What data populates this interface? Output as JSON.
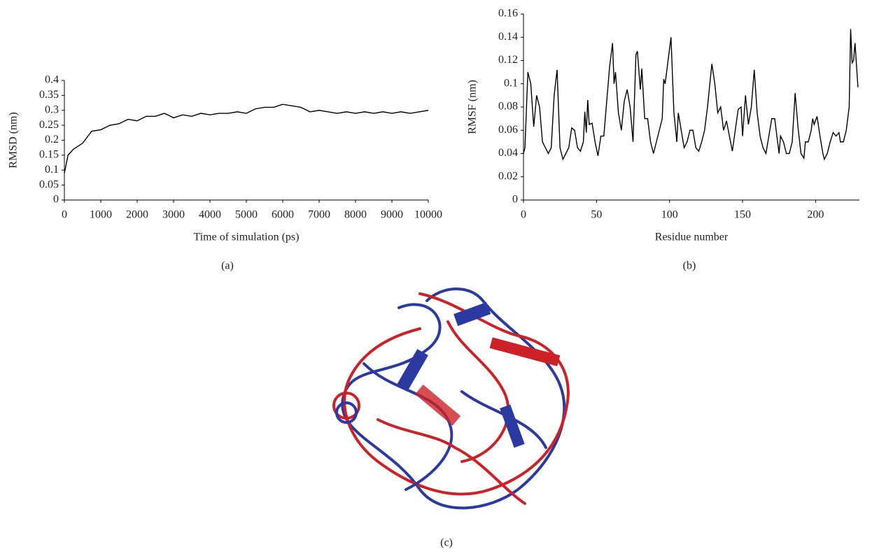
{
  "chart_data": [
    {
      "type": "line",
      "caption": "(a)",
      "x_label": "Time of simulation (ps)",
      "y_label": "RMSD (nm)",
      "xlim": [
        0,
        10000
      ],
      "xticks": [
        0,
        1000,
        2000,
        3000,
        4000,
        5000,
        6000,
        7000,
        8000,
        9000,
        10000
      ],
      "ylim": [
        0,
        0.4
      ],
      "yticks": [
        0,
        0.05,
        0.1,
        0.15,
        0.2,
        0.25,
        0.3,
        0.35,
        0.4
      ],
      "series": [
        {
          "color": "#000000",
          "x": [
            0,
            100,
            250,
            500,
            750,
            1000,
            1250,
            1500,
            1750,
            2000,
            2250,
            2500,
            2750,
            3000,
            3250,
            3500,
            3750,
            4000,
            4250,
            4500,
            4750,
            5000,
            5250,
            5500,
            5750,
            6000,
            6250,
            6500,
            6750,
            7000,
            7250,
            7500,
            7750,
            8000,
            8250,
            8500,
            8750,
            9000,
            9250,
            9500,
            9750,
            10000
          ],
          "values": [
            0.09,
            0.15,
            0.17,
            0.19,
            0.23,
            0.235,
            0.25,
            0.255,
            0.27,
            0.265,
            0.28,
            0.28,
            0.29,
            0.275,
            0.285,
            0.28,
            0.29,
            0.285,
            0.29,
            0.29,
            0.295,
            0.29,
            0.305,
            0.31,
            0.31,
            0.32,
            0.315,
            0.31,
            0.295,
            0.3,
            0.295,
            0.29,
            0.295,
            0.29,
            0.295,
            0.29,
            0.295,
            0.29,
            0.295,
            0.29,
            0.295,
            0.3
          ]
        }
      ]
    },
    {
      "type": "line",
      "caption": "(b)",
      "x_label": "Residue number",
      "y_label": "RMSF (nm)",
      "xlim": [
        0,
        230
      ],
      "xticks": [
        0,
        50,
        100,
        150,
        200
      ],
      "ylim": [
        0,
        0.16
      ],
      "yticks": [
        0,
        0.02,
        0.04,
        0.06,
        0.08,
        0.1,
        0.12,
        0.14,
        0.16
      ],
      "series": [
        {
          "color": "#000000",
          "x": [
            0,
            1,
            3,
            5,
            7,
            9,
            11,
            13,
            15,
            17,
            19,
            21,
            23,
            25,
            27,
            29,
            31,
            33,
            35,
            37,
            39,
            41,
            42,
            43,
            44,
            45,
            47,
            49,
            51,
            53,
            55,
            57,
            59,
            61,
            62,
            63,
            65,
            67,
            69,
            71,
            73,
            75,
            77,
            78,
            80,
            81,
            83,
            85,
            87,
            89,
            91,
            93,
            95,
            96,
            97,
            99,
            101,
            103,
            105,
            106,
            108,
            110,
            112,
            114,
            116,
            118,
            120,
            122,
            124,
            126,
            128,
            129,
            131,
            133,
            135,
            137,
            139,
            141,
            143,
            145,
            147,
            149,
            150,
            152,
            154,
            156,
            158,
            160,
            162,
            164,
            166,
            168,
            170,
            172,
            174,
            175,
            176,
            178,
            180,
            182,
            184,
            186,
            188,
            190,
            192,
            193,
            195,
            197,
            198,
            199,
            201,
            203,
            205,
            206,
            208,
            210,
            212,
            214,
            216,
            217,
            219,
            221,
            223,
            224,
            225,
            226,
            227,
            229
          ],
          "values": [
            0.04,
            0.045,
            0.11,
            0.1,
            0.063,
            0.09,
            0.08,
            0.05,
            0.045,
            0.04,
            0.045,
            0.09,
            0.112,
            0.045,
            0.035,
            0.04,
            0.045,
            0.062,
            0.06,
            0.045,
            0.042,
            0.05,
            0.076,
            0.058,
            0.086,
            0.065,
            0.066,
            0.05,
            0.038,
            0.055,
            0.055,
            0.085,
            0.115,
            0.135,
            0.1,
            0.11,
            0.075,
            0.06,
            0.085,
            0.095,
            0.08,
            0.05,
            0.125,
            0.128,
            0.095,
            0.113,
            0.07,
            0.07,
            0.05,
            0.04,
            0.05,
            0.06,
            0.07,
            0.104,
            0.1,
            0.12,
            0.14,
            0.075,
            0.05,
            0.075,
            0.06,
            0.045,
            0.05,
            0.06,
            0.06,
            0.045,
            0.042,
            0.05,
            0.06,
            0.08,
            0.105,
            0.117,
            0.1,
            0.075,
            0.08,
            0.06,
            0.068,
            0.055,
            0.042,
            0.06,
            0.078,
            0.08,
            0.055,
            0.09,
            0.065,
            0.08,
            0.112,
            0.075,
            0.055,
            0.045,
            0.04,
            0.055,
            0.07,
            0.07,
            0.05,
            0.04,
            0.055,
            0.05,
            0.04,
            0.04,
            0.05,
            0.092,
            0.062,
            0.04,
            0.036,
            0.05,
            0.05,
            0.06,
            0.07,
            0.065,
            0.072,
            0.055,
            0.04,
            0.035,
            0.04,
            0.05,
            0.058,
            0.055,
            0.058,
            0.05,
            0.05,
            0.06,
            0.08,
            0.147,
            0.118,
            0.12,
            0.135,
            0.097
          ]
        }
      ]
    }
  ],
  "image_panel": {
    "caption": "(c)"
  }
}
